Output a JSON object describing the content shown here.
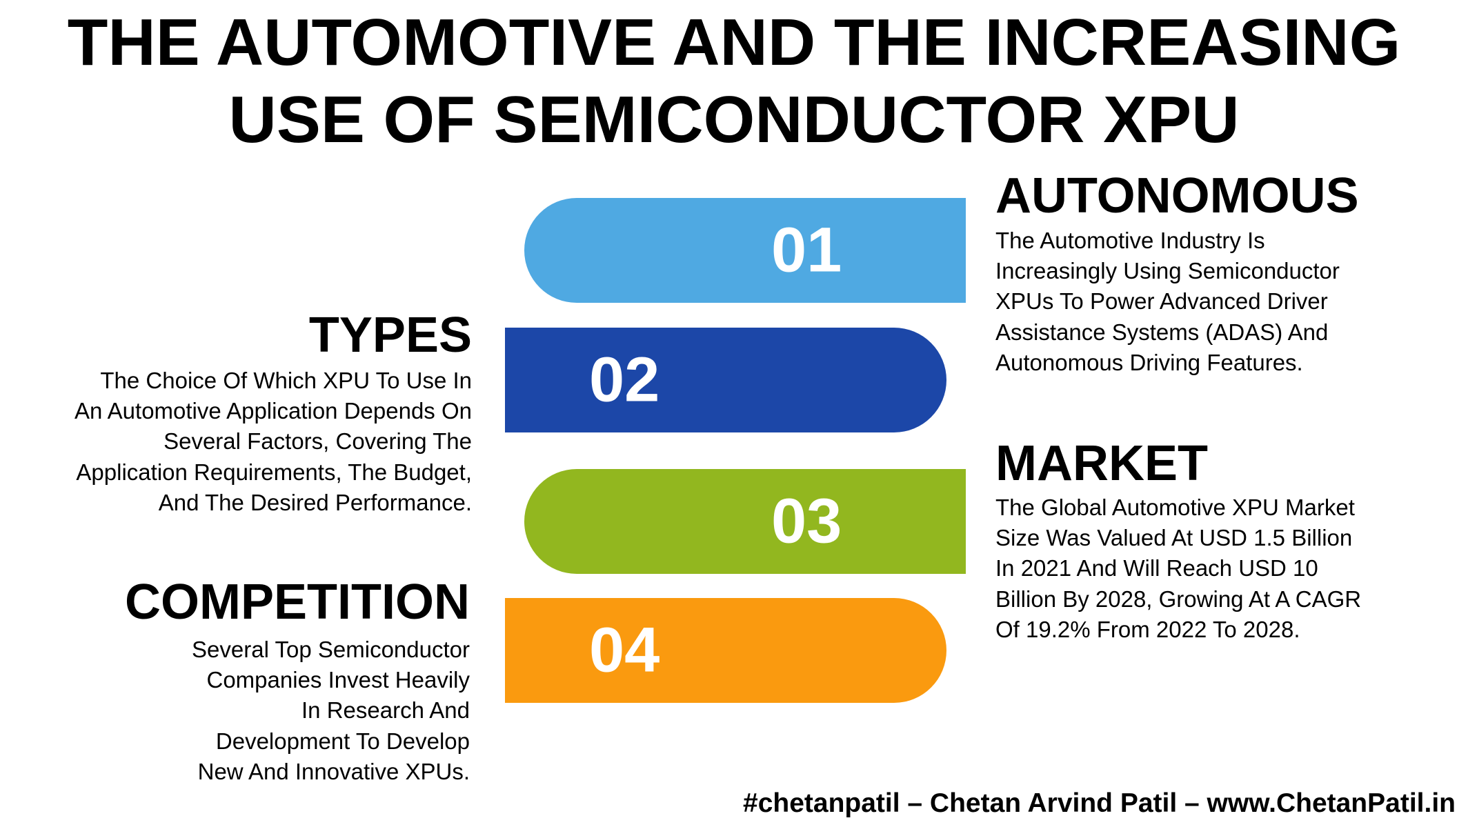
{
  "title": {
    "line1": "THE AUTOMOTIVE AND THE INCREASING",
    "line2": "USE OF SEMICONDUCTOR XPU"
  },
  "colors": {
    "band1": "#4FA9E2",
    "band2": "#1C47A8",
    "band3": "#92B71F",
    "band4": "#FA9A0F"
  },
  "bands": [
    {
      "number": "01"
    },
    {
      "number": "02"
    },
    {
      "number": "03"
    },
    {
      "number": "04"
    }
  ],
  "sections": {
    "autonomous": {
      "heading": "AUTONOMOUS",
      "lines": [
        "The Automotive Industry Is",
        "Increasingly Using Semiconductor",
        "XPUs To Power Advanced Driver",
        "Assistance Systems (ADAS) And",
        "Autonomous Driving Features."
      ]
    },
    "types": {
      "heading": "TYPES",
      "lines": [
        "The Choice Of Which XPU To Use In",
        "An Automotive Application Depends On",
        "Several Factors, Covering The",
        "Application Requirements, The Budget,",
        "And The Desired Performance."
      ]
    },
    "market": {
      "heading": "MARKET",
      "lines": [
        "The Global Automotive XPU Market",
        "Size Was Valued At USD 1.5 Billion",
        "In 2021 And Will Reach USD 10",
        "Billion By 2028, Growing At A CAGR",
        "Of 19.2% From 2022 To 2028."
      ]
    },
    "competition": {
      "heading": "COMPETITION",
      "lines": [
        "Several Top Semiconductor",
        "Companies Invest Heavily",
        "In Research And",
        "Development To Develop",
        "New And Innovative XPUs."
      ]
    }
  },
  "footer": "#chetanpatil – Chetan Arvind Patil – www.ChetanPatil.in"
}
